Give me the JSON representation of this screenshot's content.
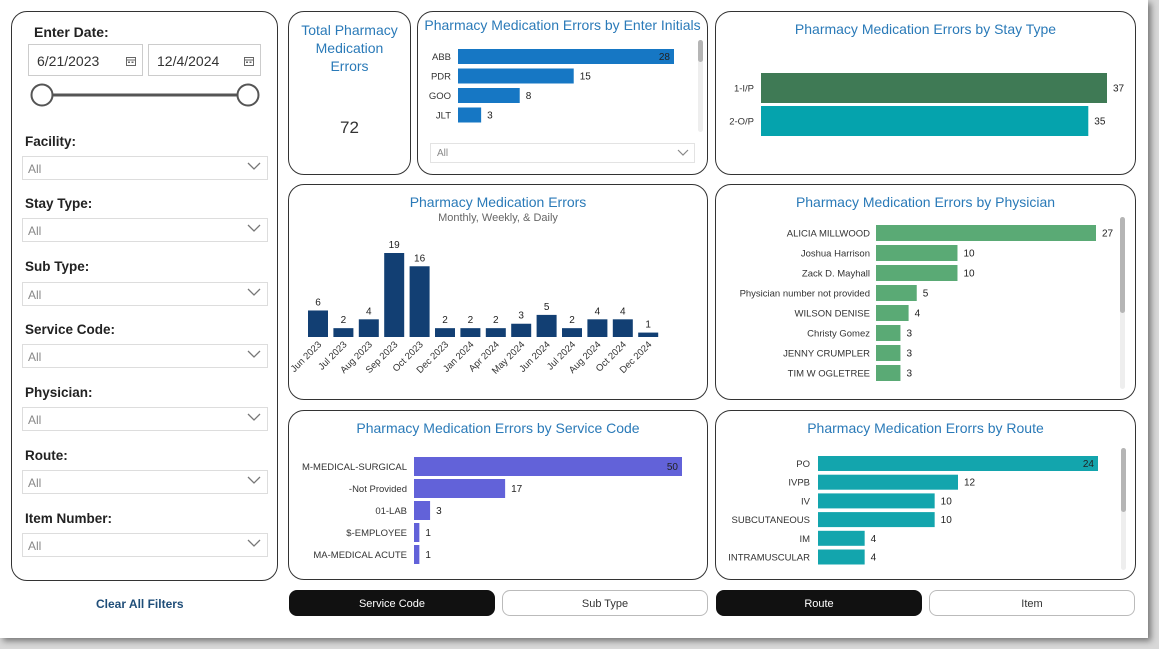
{
  "filters": {
    "enter_date_label": "Enter Date:",
    "start_date": "6/21/2023",
    "end_date": "12/4/2024",
    "items": [
      {
        "label": "Facility:",
        "value": "All"
      },
      {
        "label": "Stay Type:",
        "value": "All"
      },
      {
        "label": "Sub Type:",
        "value": "All"
      },
      {
        "label": "Service Code:",
        "value": "All"
      },
      {
        "label": "Physician:",
        "value": "All"
      },
      {
        "label": "Route:",
        "value": "All"
      },
      {
        "label": "Item Number:",
        "value": "All"
      }
    ],
    "clear_label": "Clear All Filters"
  },
  "kpi": {
    "title": "Total Pharmacy Medication Errors",
    "value": "72"
  },
  "initials": {
    "title": "Pharmacy Medication Errors by Enter Initials",
    "dropdown_value": "All",
    "color": "#1677c4",
    "rows": [
      {
        "label": "ABB",
        "value": 28
      },
      {
        "label": "PDR",
        "value": 15
      },
      {
        "label": "GOO",
        "value": 8
      },
      {
        "label": "JLT",
        "value": 3
      }
    ]
  },
  "staytype": {
    "title": "Pharmacy Medication Errors by Stay Type",
    "rows": [
      {
        "label": "1-I/P",
        "value": 37,
        "color": "#3f7a55"
      },
      {
        "label": "2-O/P",
        "value": 35,
        "color": "#05a3ad"
      }
    ]
  },
  "monthly": {
    "title": "Pharmacy Medication Errors",
    "subtitle": "Monthly, Weekly, & Daily",
    "color": "#123f73"
  },
  "chart_data": [
    {
      "type": "bar",
      "title": "Pharmacy Medication Errors",
      "subtitle": "Monthly, Weekly, & Daily",
      "categories": [
        "Jun 2023",
        "Jul 2023",
        "Aug 2023",
        "Sep 2023",
        "Oct 2023",
        "Dec 2023",
        "Jan 2024",
        "Apr 2024",
        "May 2024",
        "Jun 2024",
        "Jul 2024",
        "Aug 2024",
        "Oct 2024",
        "Dec 2024"
      ],
      "values": [
        6,
        2,
        4,
        19,
        16,
        2,
        2,
        2,
        3,
        5,
        2,
        4,
        4,
        1
      ]
    }
  ],
  "physician": {
    "title": "Pharmacy Medication Errors by Physician",
    "color": "#5aaa75",
    "rows": [
      {
        "label": "ALICIA MILLWOOD",
        "value": 27
      },
      {
        "label": "Joshua Harrison",
        "value": 10
      },
      {
        "label": "Zack D. Mayhall",
        "value": 10
      },
      {
        "label": "Physician number not provided",
        "value": 5
      },
      {
        "label": "WILSON DENISE",
        "value": 4
      },
      {
        "label": "Christy Gomez",
        "value": 3
      },
      {
        "label": "JENNY CRUMPLER",
        "value": 3
      },
      {
        "label": "TIM W OGLETREE",
        "value": 3
      }
    ]
  },
  "servicecode": {
    "title": "Pharmacy Medication Errors by Service Code",
    "color": "#6262d9",
    "rows": [
      {
        "label": "M-MEDICAL-SURGICAL",
        "value": 50
      },
      {
        "label": "-Not Provided",
        "value": 17
      },
      {
        "label": "01-LAB",
        "value": 3
      },
      {
        "label": "$-EMPLOYEE",
        "value": 1
      },
      {
        "label": "MA-MEDICAL ACUTE",
        "value": 1
      }
    ]
  },
  "route": {
    "title": "Pharmacy Medication Erorrs by Route",
    "color": "#13a5ad",
    "rows": [
      {
        "label": "PO",
        "value": 24
      },
      {
        "label": "IVPB",
        "value": 12
      },
      {
        "label": "IV",
        "value": 10
      },
      {
        "label": "SUBCUTANEOUS",
        "value": 10
      },
      {
        "label": "IM",
        "value": 4
      },
      {
        "label": "INTRAMUSCULAR",
        "value": 4
      }
    ]
  },
  "buttons": [
    {
      "label": "Service Code",
      "style": "dark"
    },
    {
      "label": "Sub Type",
      "style": "light"
    },
    {
      "label": "Route",
      "style": "dark"
    },
    {
      "label": "Item",
      "style": "light"
    }
  ]
}
